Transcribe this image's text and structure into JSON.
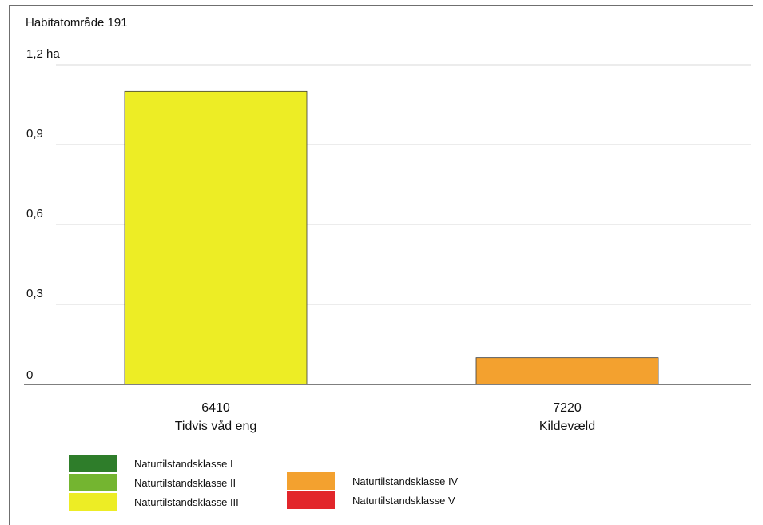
{
  "chart_data": {
    "type": "bar",
    "title": "Habitatområde 191",
    "unit_label": "ha",
    "categories": [
      {
        "code": "6410",
        "name": "Tidvis våd eng"
      },
      {
        "code": "7220",
        "name": "Kildevæld"
      }
    ],
    "values": [
      1.1,
      0.1
    ],
    "bar_colors": [
      "#eded25",
      "#f3a12f"
    ],
    "yticks": [
      {
        "value": 0,
        "label": "0"
      },
      {
        "value": 0.3,
        "label": "0,3"
      },
      {
        "value": 0.6,
        "label": "0,6"
      },
      {
        "value": 0.9,
        "label": "0,9"
      },
      {
        "value": 1.2,
        "label": "1,2 ha"
      }
    ],
    "ylim": [
      0,
      1.2
    ],
    "grid": true,
    "legend": {
      "placement": "bottom",
      "items": [
        {
          "label": "Naturtilstandsklasse I",
          "color": "#2e7d2a"
        },
        {
          "label": "Naturtilstandsklasse II",
          "color": "#74b530"
        },
        {
          "label": "Naturtilstandsklasse III",
          "color": "#eded25"
        },
        {
          "label": "Naturtilstandsklasse IV",
          "color": "#f3a12f"
        },
        {
          "label": "Naturtilstandsklasse V",
          "color": "#e2262b"
        }
      ]
    }
  }
}
